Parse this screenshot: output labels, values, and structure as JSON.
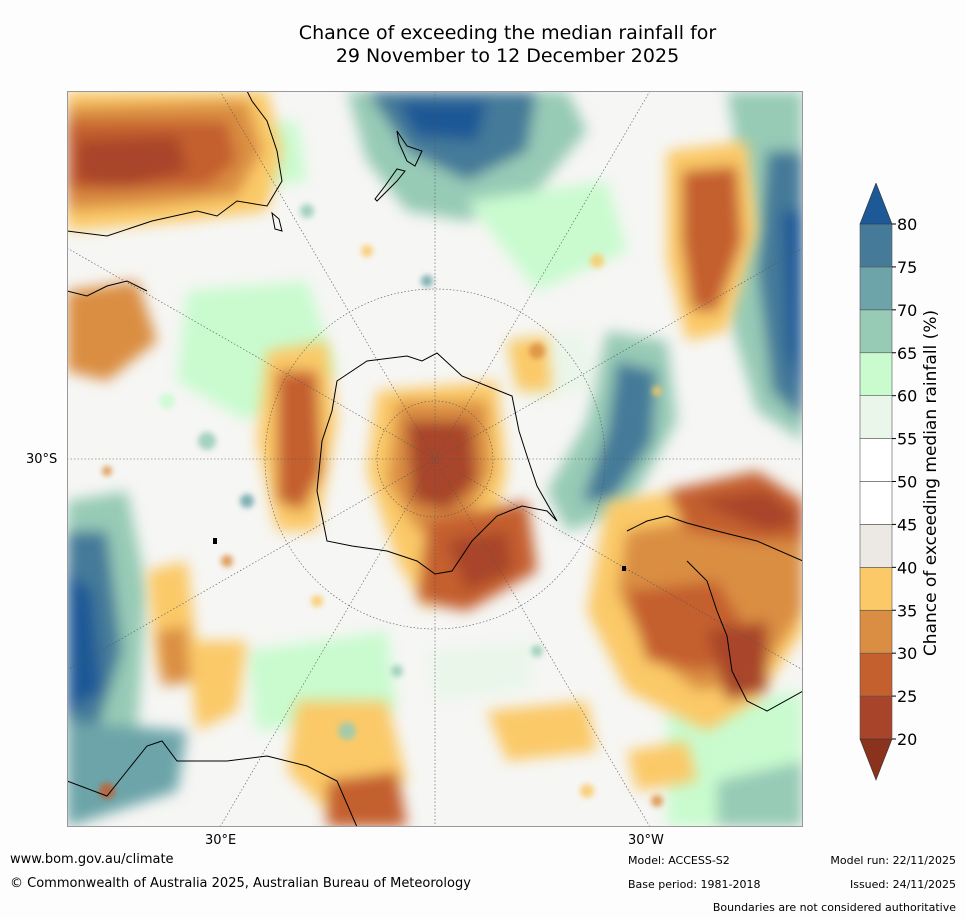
{
  "title": {
    "line1": "Chance of exceeding the median rainfall for",
    "line2": "29 November to 12 December 2025"
  },
  "map": {
    "projection": "south polar stereographic",
    "axis_labels": {
      "left_lat": "30°S",
      "bottom_left_lon": "30°E",
      "bottom_right_lon": "30°W"
    }
  },
  "colorbar": {
    "title": "Chance of exceeding median rainfall (%)",
    "ticks": [
      "20",
      "25",
      "30",
      "35",
      "40",
      "45",
      "50",
      "55",
      "60",
      "65",
      "70",
      "75",
      "80"
    ],
    "bins": [
      {
        "from": 20,
        "to": 25,
        "color": "#a8442a"
      },
      {
        "from": 25,
        "to": 30,
        "color": "#c45f2e"
      },
      {
        "from": 30,
        "to": 35,
        "color": "#da8e43"
      },
      {
        "from": 35,
        "to": 40,
        "color": "#fbc968"
      },
      {
        "from": 40,
        "to": 45,
        "color": "#ece9e5"
      },
      {
        "from": 45,
        "to": 50,
        "color": "#ffffff"
      },
      {
        "from": 50,
        "to": 55,
        "color": "#ffffff"
      },
      {
        "from": 55,
        "to": 60,
        "color": "#eaf6ea"
      },
      {
        "from": 60,
        "to": 65,
        "color": "#c9fbcf"
      },
      {
        "from": 65,
        "to": 70,
        "color": "#97cbb6"
      },
      {
        "from": 70,
        "to": 75,
        "color": "#6ca4a9"
      },
      {
        "from": 75,
        "to": 80,
        "color": "#457a99"
      }
    ],
    "under_color": "#8b321c",
    "over_color": "#1d5996"
  },
  "footer": {
    "website": "www.bom.gov.au/climate",
    "copyright": "© Commonwealth of Australia 2025, Australian Bureau of Meteorology",
    "model": "Model: ACCESS-S2",
    "base_period": "Base period: 1981-2018",
    "model_run": "Model run: 22/11/2025",
    "issued": "Issued: 24/11/2025",
    "disclaimer": "Boundaries are not considered authoritative"
  }
}
